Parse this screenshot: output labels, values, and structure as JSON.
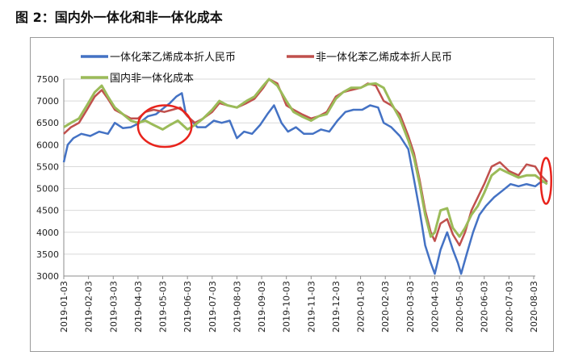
{
  "caption": "图 2：国内外一体化和非一体化成本",
  "colors": {
    "blue": "#4472c4",
    "red": "#c0504d",
    "green": "#9bbb59",
    "highlight": "#e8231c",
    "grid": "#d9d9d9"
  },
  "chart_data": {
    "type": "line",
    "title": "",
    "xlabel": "",
    "ylabel": "",
    "ylim": [
      3000,
      7500
    ],
    "yticks": [
      "7500",
      "7000",
      "6500",
      "6000",
      "5500",
      "5000",
      "4500",
      "4000",
      "3500",
      "3000"
    ],
    "xticks": [
      "2019-01-03",
      "2019-02-03",
      "2019-03-03",
      "2019-04-03",
      "2019-05-03",
      "2019-06-03",
      "2019-07-03",
      "2019-08-03",
      "2019-09-03",
      "2019-10-03",
      "2019-11-03",
      "2019-12-03",
      "2020-01-03",
      "2020-02-03",
      "2020-03-03",
      "2020-04-03",
      "2020-05-03",
      "2020-06-03",
      "2020-07-03",
      "2020-08-03"
    ],
    "legend": "top",
    "grid": true,
    "series": [
      {
        "name": "一体化苯乙烯成本折人民币",
        "color": "#4472c4",
        "points": [
          [
            "2019-01-03",
            5600
          ],
          [
            "2019-01-08",
            6000
          ],
          [
            "2019-01-15",
            6150
          ],
          [
            "2019-01-25",
            6250
          ],
          [
            "2019-02-05",
            6200
          ],
          [
            "2019-02-15",
            6300
          ],
          [
            "2019-02-25",
            6250
          ],
          [
            "2019-03-05",
            6500
          ],
          [
            "2019-03-15",
            6380
          ],
          [
            "2019-03-25",
            6400
          ],
          [
            "2019-04-05",
            6500
          ],
          [
            "2019-04-15",
            6650
          ],
          [
            "2019-04-25",
            6700
          ],
          [
            "2019-05-05",
            6850
          ],
          [
            "2019-05-12",
            6950
          ],
          [
            "2019-05-20",
            7100
          ],
          [
            "2019-05-27",
            7180
          ],
          [
            "2019-06-01",
            6700
          ],
          [
            "2019-06-08",
            6550
          ],
          [
            "2019-06-15",
            6400
          ],
          [
            "2019-06-25",
            6400
          ],
          [
            "2019-07-05",
            6550
          ],
          [
            "2019-07-15",
            6500
          ],
          [
            "2019-07-25",
            6550
          ],
          [
            "2019-08-03",
            6150
          ],
          [
            "2019-08-12",
            6300
          ],
          [
            "2019-08-22",
            6250
          ],
          [
            "2019-09-01",
            6450
          ],
          [
            "2019-09-10",
            6700
          ],
          [
            "2019-09-18",
            6900
          ],
          [
            "2019-09-27",
            6500
          ],
          [
            "2019-10-05",
            6300
          ],
          [
            "2019-10-15",
            6400
          ],
          [
            "2019-10-25",
            6250
          ],
          [
            "2019-11-05",
            6250
          ],
          [
            "2019-11-15",
            6350
          ],
          [
            "2019-11-25",
            6300
          ],
          [
            "2019-12-05",
            6550
          ],
          [
            "2019-12-15",
            6750
          ],
          [
            "2019-12-25",
            6800
          ],
          [
            "2020-01-05",
            6800
          ],
          [
            "2020-01-15",
            6900
          ],
          [
            "2020-01-25",
            6850
          ],
          [
            "2020-02-01",
            6500
          ],
          [
            "2020-02-10",
            6400
          ],
          [
            "2020-02-20",
            6200
          ],
          [
            "2020-03-01",
            5900
          ],
          [
            "2020-03-08",
            5200
          ],
          [
            "2020-03-15",
            4500
          ],
          [
            "2020-03-22",
            3700
          ],
          [
            "2020-03-29",
            3300
          ],
          [
            "2020-04-03",
            3050
          ],
          [
            "2020-04-10",
            3600
          ],
          [
            "2020-04-18",
            4000
          ],
          [
            "2020-04-25",
            3600
          ],
          [
            "2020-05-01",
            3300
          ],
          [
            "2020-05-05",
            3050
          ],
          [
            "2020-05-12",
            3500
          ],
          [
            "2020-05-20",
            4000
          ],
          [
            "2020-05-28",
            4400
          ],
          [
            "2020-06-05",
            4600
          ],
          [
            "2020-06-15",
            4800
          ],
          [
            "2020-06-25",
            4950
          ],
          [
            "2020-07-05",
            5100
          ],
          [
            "2020-07-15",
            5050
          ],
          [
            "2020-07-25",
            5100
          ],
          [
            "2020-08-05",
            5050
          ],
          [
            "2020-08-12",
            5150
          ],
          [
            "2020-08-20",
            5150
          ]
        ]
      },
      {
        "name": "非一体化苯乙烯成本折人民币",
        "color": "#c0504d",
        "points": [
          [
            "2019-01-03",
            6250
          ],
          [
            "2019-01-12",
            6400
          ],
          [
            "2019-01-22",
            6500
          ],
          [
            "2019-02-01",
            6800
          ],
          [
            "2019-02-10",
            7100
          ],
          [
            "2019-02-18",
            7250
          ],
          [
            "2019-02-25",
            7050
          ],
          [
            "2019-03-05",
            6800
          ],
          [
            "2019-03-15",
            6700
          ],
          [
            "2019-03-25",
            6600
          ],
          [
            "2019-04-03",
            6600
          ],
          [
            "2019-04-12",
            6750
          ],
          [
            "2019-04-22",
            6800
          ],
          [
            "2019-05-05",
            6750
          ],
          [
            "2019-05-15",
            6800
          ],
          [
            "2019-05-25",
            6850
          ],
          [
            "2019-06-03",
            6650
          ],
          [
            "2019-06-12",
            6500
          ],
          [
            "2019-06-22",
            6600
          ],
          [
            "2019-07-03",
            6750
          ],
          [
            "2019-07-12",
            6950
          ],
          [
            "2019-07-22",
            6900
          ],
          [
            "2019-08-03",
            6850
          ],
          [
            "2019-08-15",
            6950
          ],
          [
            "2019-08-25",
            7050
          ],
          [
            "2019-09-05",
            7300
          ],
          [
            "2019-09-12",
            7500
          ],
          [
            "2019-09-22",
            7400
          ],
          [
            "2019-10-03",
            6900
          ],
          [
            "2019-10-12",
            6800
          ],
          [
            "2019-10-22",
            6700
          ],
          [
            "2019-11-03",
            6600
          ],
          [
            "2019-11-12",
            6650
          ],
          [
            "2019-11-22",
            6750
          ],
          [
            "2019-12-03",
            7100
          ],
          [
            "2019-12-12",
            7200
          ],
          [
            "2019-12-22",
            7250
          ],
          [
            "2020-01-03",
            7300
          ],
          [
            "2020-01-12",
            7400
          ],
          [
            "2020-01-22",
            7350
          ],
          [
            "2020-02-01",
            7000
          ],
          [
            "2020-02-10",
            6900
          ],
          [
            "2020-02-20",
            6700
          ],
          [
            "2020-03-01",
            6200
          ],
          [
            "2020-03-08",
            5800
          ],
          [
            "2020-03-15",
            5200
          ],
          [
            "2020-03-22",
            4500
          ],
          [
            "2020-03-29",
            4000
          ],
          [
            "2020-04-03",
            3800
          ],
          [
            "2020-04-10",
            4200
          ],
          [
            "2020-04-18",
            4300
          ],
          [
            "2020-04-25",
            3950
          ],
          [
            "2020-05-03",
            3700
          ],
          [
            "2020-05-10",
            4000
          ],
          [
            "2020-05-18",
            4500
          ],
          [
            "2020-05-26",
            4800
          ],
          [
            "2020-06-03",
            5100
          ],
          [
            "2020-06-12",
            5500
          ],
          [
            "2020-06-22",
            5600
          ],
          [
            "2020-07-03",
            5400
          ],
          [
            "2020-07-15",
            5300
          ],
          [
            "2020-07-25",
            5550
          ],
          [
            "2020-08-05",
            5500
          ],
          [
            "2020-08-12",
            5300
          ],
          [
            "2020-08-20",
            5150
          ]
        ]
      },
      {
        "name": "国内非一体化成本",
        "color": "#9bbb59",
        "points": [
          [
            "2019-01-03",
            6400
          ],
          [
            "2019-01-12",
            6500
          ],
          [
            "2019-01-22",
            6600
          ],
          [
            "2019-02-01",
            6900
          ],
          [
            "2019-02-10",
            7200
          ],
          [
            "2019-02-18",
            7350
          ],
          [
            "2019-02-25",
            7100
          ],
          [
            "2019-03-05",
            6850
          ],
          [
            "2019-03-15",
            6700
          ],
          [
            "2019-03-25",
            6550
          ],
          [
            "2019-04-03",
            6500
          ],
          [
            "2019-04-12",
            6550
          ],
          [
            "2019-04-22",
            6450
          ],
          [
            "2019-05-03",
            6350
          ],
          [
            "2019-05-12",
            6450
          ],
          [
            "2019-05-22",
            6550
          ],
          [
            "2019-06-03",
            6350
          ],
          [
            "2019-06-12",
            6450
          ],
          [
            "2019-06-22",
            6600
          ],
          [
            "2019-07-03",
            6800
          ],
          [
            "2019-07-12",
            7000
          ],
          [
            "2019-07-22",
            6900
          ],
          [
            "2019-08-03",
            6850
          ],
          [
            "2019-08-15",
            7000
          ],
          [
            "2019-08-25",
            7100
          ],
          [
            "2019-09-05",
            7350
          ],
          [
            "2019-09-12",
            7500
          ],
          [
            "2019-09-22",
            7350
          ],
          [
            "2019-10-03",
            7000
          ],
          [
            "2019-10-12",
            6750
          ],
          [
            "2019-10-22",
            6650
          ],
          [
            "2019-11-03",
            6550
          ],
          [
            "2019-11-12",
            6650
          ],
          [
            "2019-11-22",
            6700
          ],
          [
            "2019-12-03",
            7050
          ],
          [
            "2019-12-12",
            7200
          ],
          [
            "2019-12-22",
            7300
          ],
          [
            "2020-01-03",
            7300
          ],
          [
            "2020-01-12",
            7380
          ],
          [
            "2020-01-22",
            7400
          ],
          [
            "2020-02-01",
            7300
          ],
          [
            "2020-02-10",
            6950
          ],
          [
            "2020-02-20",
            6600
          ],
          [
            "2020-03-01",
            6100
          ],
          [
            "2020-03-08",
            5700
          ],
          [
            "2020-03-15",
            5100
          ],
          [
            "2020-03-22",
            4400
          ],
          [
            "2020-03-29",
            3900
          ],
          [
            "2020-04-03",
            4000
          ],
          [
            "2020-04-10",
            4500
          ],
          [
            "2020-04-18",
            4550
          ],
          [
            "2020-04-25",
            4100
          ],
          [
            "2020-05-03",
            3900
          ],
          [
            "2020-05-10",
            4100
          ],
          [
            "2020-05-18",
            4400
          ],
          [
            "2020-05-26",
            4600
          ],
          [
            "2020-06-03",
            4900
          ],
          [
            "2020-06-12",
            5300
          ],
          [
            "2020-06-22",
            5450
          ],
          [
            "2020-07-03",
            5350
          ],
          [
            "2020-07-15",
            5250
          ],
          [
            "2020-07-25",
            5300
          ],
          [
            "2020-08-05",
            5300
          ],
          [
            "2020-08-12",
            5200
          ],
          [
            "2020-08-20",
            5100
          ]
        ]
      }
    ],
    "annotations": [
      {
        "shape": "ellipse",
        "from": "2019-04-03",
        "to": "2019-06-08",
        "y_low": 5950,
        "y_high": 6900
      },
      {
        "shape": "ellipse",
        "from": "2020-08-12",
        "to": "2020-08-25",
        "y_low": 4650,
        "y_high": 5700
      }
    ]
  }
}
